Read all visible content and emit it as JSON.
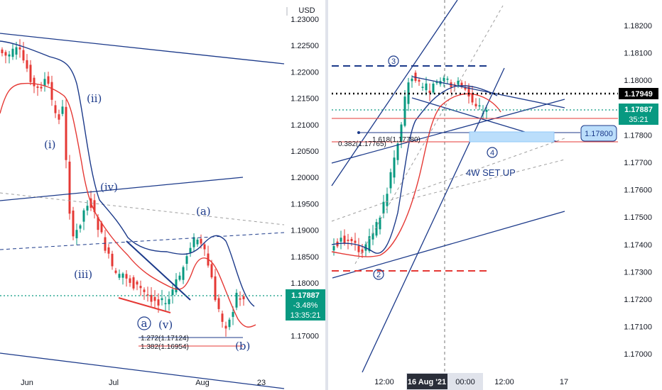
{
  "chart_data": [
    {
      "type": "candlestick",
      "panel": "left",
      "currency": "USD",
      "ylim": [
        1.165,
        1.235
      ],
      "y_ticks": [
        "1.23000",
        "1.22500",
        "1.22000",
        "1.21500",
        "1.21000",
        "1.20500",
        "1.20000",
        "1.19500",
        "1.19000",
        "1.18500",
        "1.18000",
        "1.17500",
        "1.17000"
      ],
      "x_ticks": [
        "Jun",
        "Jul",
        "Aug",
        "23"
      ],
      "wave_labels": [
        "(i)",
        "(ii)",
        "(iii)",
        "(iv)",
        "(v)",
        "(a)",
        "(b)"
      ],
      "circle_label": "a",
      "fib_labels": [
        {
          "text": "1.272(1.17124)",
          "price": 1.17124,
          "color": "#1c3a8a"
        },
        {
          "text": "1.382(1.16954)",
          "price": 1.16954,
          "color": "#e53935"
        }
      ],
      "last_price": {
        "price": "1.17887",
        "change": "-3.48%",
        "countdown": "13:35:21",
        "color": "#089981"
      }
    },
    {
      "type": "candlestick",
      "panel": "right",
      "ylim": [
        1.1694,
        1.1828
      ],
      "y_ticks": [
        "1.18200",
        "1.18100",
        "1.18000",
        "1.17900",
        "1.17800",
        "1.17700",
        "1.17600",
        "1.17500",
        "1.17400",
        "1.17300",
        "1.17200",
        "1.17100",
        "1.17000"
      ],
      "x_ticks": [
        "12:00",
        "16 Aug '21",
        "00:00",
        "12:00",
        "17"
      ],
      "wave_labels": [
        "3",
        "2",
        "4"
      ],
      "setup_text": "4W SET UP",
      "fib_labels": [
        {
          "text": "1.618(1.17780)",
          "price": 1.1778,
          "color": "#1c3a8a"
        },
        {
          "text": "0.382(1.17765)",
          "price": 1.17765,
          "color": "#e53935"
        }
      ],
      "level_1": {
        "price": "1.17949",
        "color": "#000000"
      },
      "level_2": {
        "price": "1.17887",
        "countdown": "35:21",
        "color": "#089981"
      },
      "level_3": {
        "price": "1.17800",
        "color": "#1c3a8a"
      }
    }
  ]
}
